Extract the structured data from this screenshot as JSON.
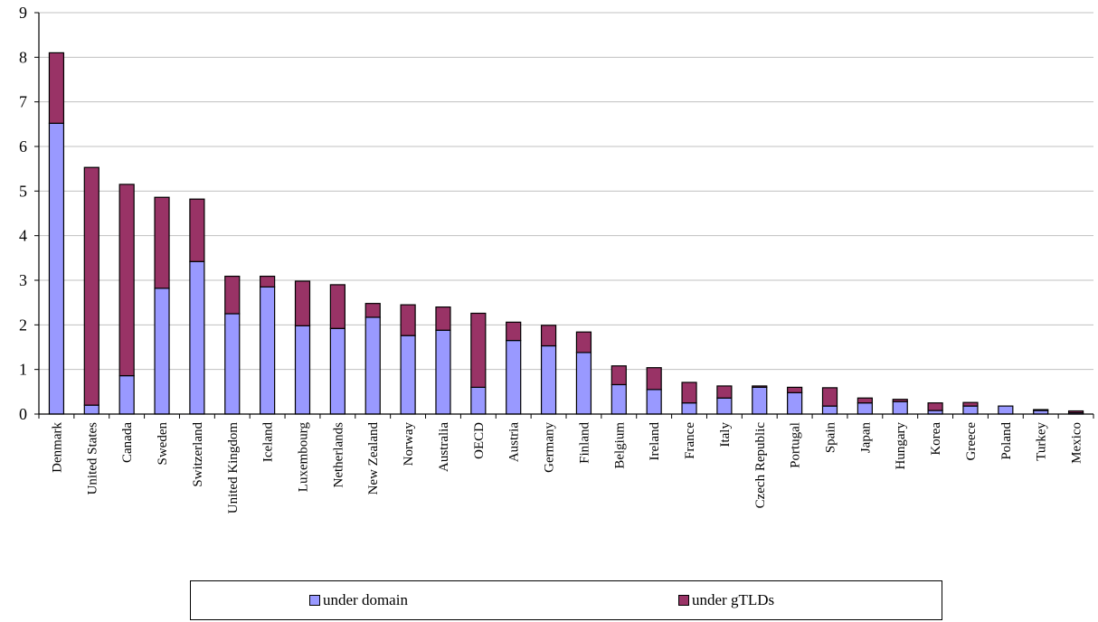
{
  "chart_data": {
    "type": "bar",
    "stacked": true,
    "categories": [
      "Denmark",
      "United States",
      "Canada",
      "Sweden",
      "Switzerland",
      "United Kingdom",
      "Iceland",
      "Luxembourg",
      "Netherlands",
      "New Zealand",
      "Norway",
      "Australia",
      "OECD",
      "Austria",
      "Germany",
      "Finland",
      "Belgium",
      "Ireland",
      "France",
      "Italy",
      "Czech Republic",
      "Portugal",
      "Spain",
      "Japan",
      "Hungary",
      "Korea",
      "Greece",
      "Poland",
      "Turkey",
      "Mexico"
    ],
    "series": [
      {
        "name": "under domain",
        "color": "#9999ff",
        "values": [
          6.52,
          0.2,
          0.86,
          2.82,
          3.42,
          2.25,
          2.85,
          1.98,
          1.92,
          2.17,
          1.76,
          1.88,
          0.6,
          1.65,
          1.53,
          1.38,
          0.66,
          0.55,
          0.25,
          0.36,
          0.6,
          0.48,
          0.18,
          0.25,
          0.28,
          0.08,
          0.18,
          0.18,
          0.08,
          0.03
        ]
      },
      {
        "name": "under gTLDs",
        "color": "#993366",
        "values": [
          1.58,
          5.33,
          4.29,
          2.04,
          1.4,
          0.84,
          0.24,
          1.0,
          0.98,
          0.31,
          0.69,
          0.52,
          1.66,
          0.41,
          0.46,
          0.46,
          0.42,
          0.49,
          0.46,
          0.27,
          0.03,
          0.12,
          0.41,
          0.11,
          0.05,
          0.17,
          0.08,
          0.0,
          0.02,
          0.04
        ]
      }
    ],
    "ylim": [
      0,
      9
    ],
    "yticks": [
      "0",
      "1",
      "2",
      "3",
      "4",
      "5",
      "6",
      "7",
      "8",
      "9"
    ],
    "grid": true,
    "legend_position": "bottom"
  },
  "legend": {
    "items": [
      {
        "label": "under domain",
        "color": "#9999ff"
      },
      {
        "label": "under gTLDs",
        "color": "#993366"
      }
    ]
  }
}
